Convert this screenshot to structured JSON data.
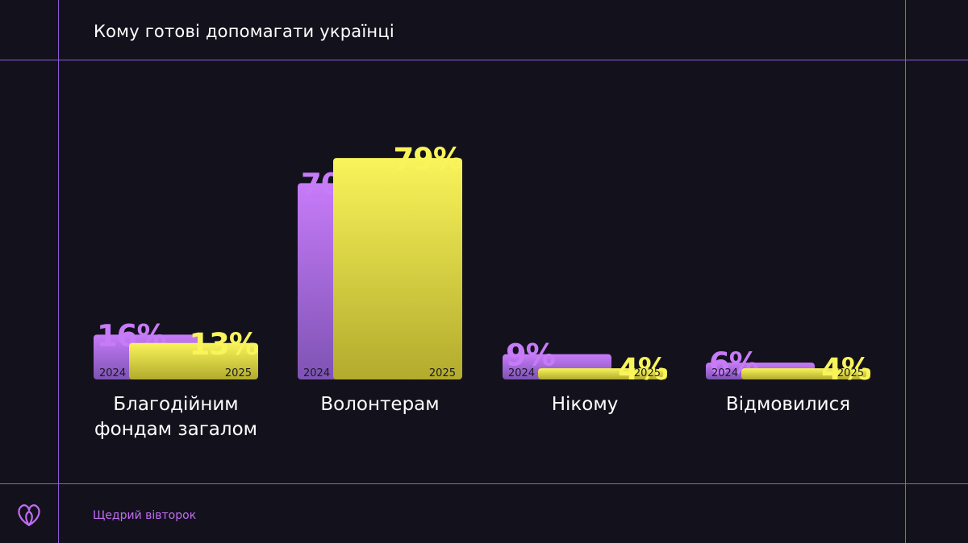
{
  "title": "Кому готові допомагати українці",
  "footer": {
    "brand": "Щедрий вівторок",
    "logo_icon": "heart-loop-icon"
  },
  "colors": {
    "background": "#13121c",
    "grid": "#8e5bd8",
    "purple_top": "#c77bf8",
    "purple_bottom": "#7e53b4",
    "purple_text": "#c77bf8",
    "yellow_top": "#f9f45a",
    "yellow_bottom": "#b2ab2d",
    "yellow_text": "#f9f45a",
    "footer_text": "#c16cf5"
  },
  "chart_data": {
    "type": "bar",
    "title": "Кому готові допомагати українці",
    "categories": [
      [
        "Благодійним",
        "фондам загалом"
      ],
      [
        "Волонтерам"
      ],
      [
        "Нікому"
      ],
      [
        "Відмовилися"
      ]
    ],
    "series": [
      {
        "name": "2024",
        "values": [
          16,
          70,
          9,
          6
        ],
        "labels": [
          "16%",
          "70%",
          "9%",
          "6%"
        ],
        "year_label": "2024"
      },
      {
        "name": "2025",
        "values": [
          13,
          79,
          4,
          4
        ],
        "labels": [
          "13%",
          "79%",
          "4%",
          "4%"
        ],
        "year_label": "2025"
      }
    ],
    "ylim": [
      0,
      100
    ],
    "grid": false,
    "legend": "none"
  }
}
